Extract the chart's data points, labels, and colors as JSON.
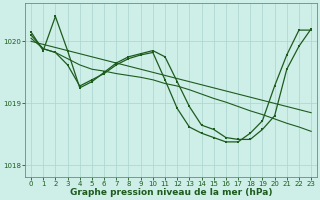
{
  "s1_x": [
    0,
    1,
    2,
    3,
    4,
    5,
    6,
    7,
    8,
    9,
    10,
    11,
    12,
    13,
    14,
    15,
    16,
    17,
    18,
    19,
    20,
    21,
    22,
    23
  ],
  "s1_y": [
    1020.15,
    1019.85,
    1020.4,
    1019.85,
    1019.25,
    1019.35,
    1019.5,
    1019.65,
    1019.75,
    1019.8,
    1019.85,
    1019.75,
    1019.35,
    1018.95,
    1018.65,
    1018.58,
    1018.45,
    1018.42,
    1018.42,
    1018.58,
    1018.8,
    1019.55,
    1019.92,
    1020.2
  ],
  "s2_x": [
    0,
    1,
    2,
    3,
    4,
    5,
    6,
    7,
    8,
    9,
    10,
    11,
    12,
    13,
    14,
    15,
    16,
    17,
    18,
    19,
    20,
    21,
    22,
    23
  ],
  "s2_y": [
    1020.05,
    1019.88,
    1019.82,
    1019.72,
    1019.62,
    1019.55,
    1019.52,
    1019.48,
    1019.45,
    1019.42,
    1019.38,
    1019.32,
    1019.28,
    1019.22,
    1019.15,
    1019.08,
    1019.02,
    1018.95,
    1018.88,
    1018.82,
    1018.75,
    1018.68,
    1018.62,
    1018.55
  ],
  "s3_x": [
    0,
    1,
    2,
    3,
    4,
    5,
    6,
    7,
    8,
    9,
    10,
    11,
    12,
    13,
    14,
    15,
    16,
    17,
    18,
    19,
    20,
    21,
    22,
    23
  ],
  "s3_y": [
    1020.0,
    1019.95,
    1019.9,
    1019.85,
    1019.8,
    1019.75,
    1019.7,
    1019.65,
    1019.6,
    1019.55,
    1019.5,
    1019.45,
    1019.4,
    1019.35,
    1019.3,
    1019.25,
    1019.2,
    1019.15,
    1019.1,
    1019.05,
    1019.0,
    1018.95,
    1018.9,
    1018.85
  ],
  "s4_x": [
    0,
    1,
    2,
    3,
    4,
    5,
    6,
    7,
    8,
    9,
    10,
    11,
    12,
    13,
    14,
    15,
    16,
    17,
    18,
    19,
    20,
    21,
    22,
    23
  ],
  "s4_y": [
    1020.1,
    1019.88,
    1019.82,
    1019.62,
    1019.28,
    1019.38,
    1019.48,
    1019.62,
    1019.72,
    1019.78,
    1019.82,
    1019.38,
    1018.92,
    1018.62,
    1018.52,
    1018.45,
    1018.38,
    1018.38,
    1018.52,
    1018.72,
    1019.28,
    1019.78,
    1020.18,
    1020.18
  ],
  "xlim": [
    -0.5,
    23.5
  ],
  "ylim": [
    1017.82,
    1020.62
  ],
  "yticks": [
    1018,
    1019,
    1020
  ],
  "xticks": [
    0,
    1,
    2,
    3,
    4,
    5,
    6,
    7,
    8,
    9,
    10,
    11,
    12,
    13,
    14,
    15,
    16,
    17,
    18,
    19,
    20,
    21,
    22,
    23
  ],
  "xlabel": "Graphe pression niveau de la mer (hPa)",
  "background_color": "#ceeee8",
  "grid_color": "#aad4ce",
  "line_color": "#1e5c1e",
  "tick_label_fontsize": 5.0,
  "xlabel_fontsize": 6.5
}
